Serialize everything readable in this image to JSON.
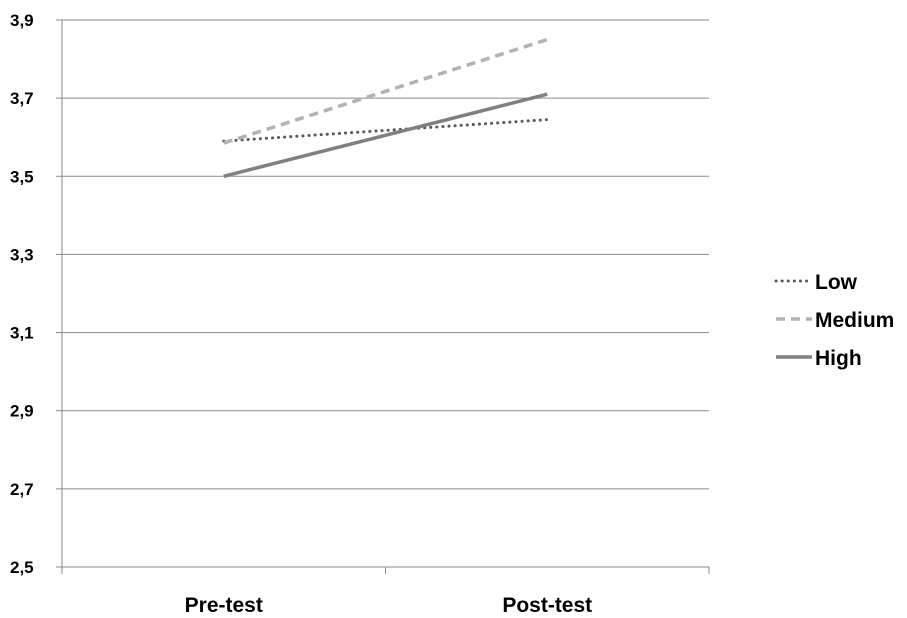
{
  "chart_data": {
    "type": "line",
    "categories": [
      "Pre-test",
      "Post-test"
    ],
    "ylim": [
      2.5,
      3.9
    ],
    "yticks": [
      "2,5",
      "2,7",
      "2,9",
      "3,1",
      "3,3",
      "3,5",
      "3,7",
      "3,9"
    ],
    "grid": true,
    "legend": "right",
    "series": [
      {
        "name": "Low",
        "values": [
          3.59,
          3.645
        ],
        "color": "#595959",
        "style": "dotted"
      },
      {
        "name": "Medium",
        "values": [
          3.585,
          3.85
        ],
        "color": "#b2b2b2",
        "style": "dashed"
      },
      {
        "name": "High",
        "values": [
          3.5,
          3.71
        ],
        "color": "#808080",
        "style": "solid"
      }
    ]
  }
}
